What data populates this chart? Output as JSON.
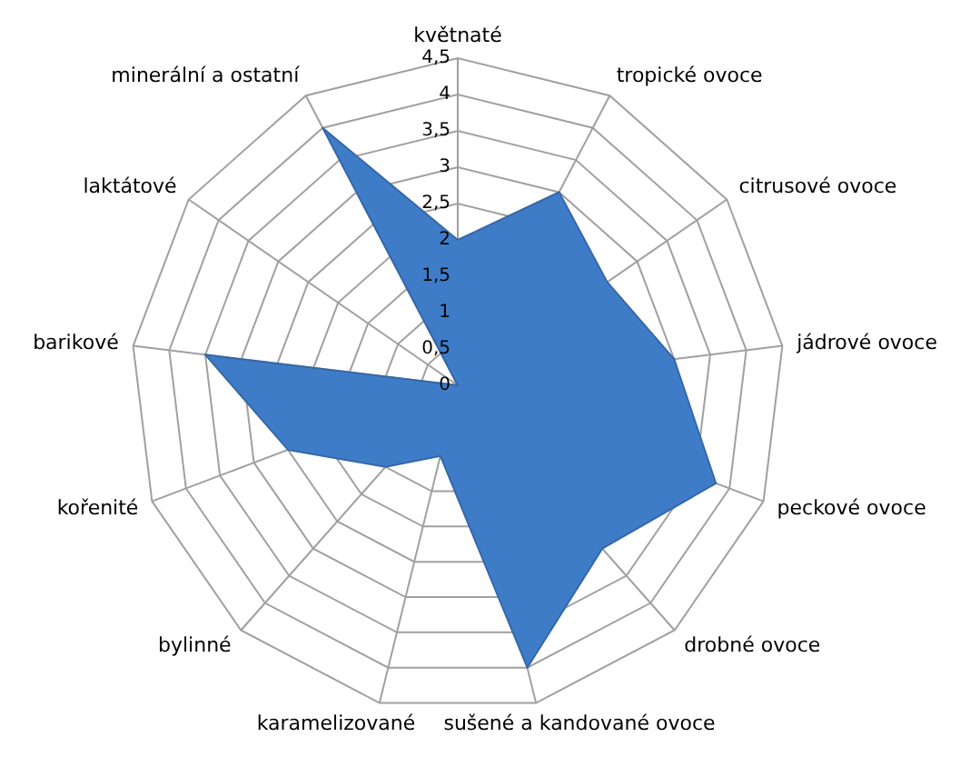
{
  "chart_data": {
    "type": "radar",
    "categories": [
      "květnaté",
      "tropické ovoce",
      "citrusové ovoce",
      "jádrové ovoce",
      "peckové ovoce",
      "drobné ovoce",
      "sušené a kandované ovoce",
      "karamelizované",
      "bylinné",
      "kořenité",
      "barikové",
      "laktátové",
      "minerální a ostatní"
    ],
    "series": [
      {
        "color": "#3f7cc8",
        "values": [
          2,
          3,
          2.5,
          3,
          3.8,
          3,
          4,
          1,
          1.5,
          2.5,
          3.5,
          0,
          4
        ]
      }
    ],
    "ylim": [
      0,
      4.5
    ],
    "yticks": [
      {
        "value": 0,
        "label": "0"
      },
      {
        "value": 0.5,
        "label": "0,5"
      },
      {
        "value": 1,
        "label": "1"
      },
      {
        "value": 1.5,
        "label": "1,5"
      },
      {
        "value": 2,
        "label": "2"
      },
      {
        "value": 2.5,
        "label": "2,5"
      },
      {
        "value": 3,
        "label": "3"
      },
      {
        "value": 3.5,
        "label": "3,5"
      },
      {
        "value": 4,
        "label": "4"
      },
      {
        "value": 4.5,
        "label": "4,5"
      }
    ],
    "grid": true
  }
}
